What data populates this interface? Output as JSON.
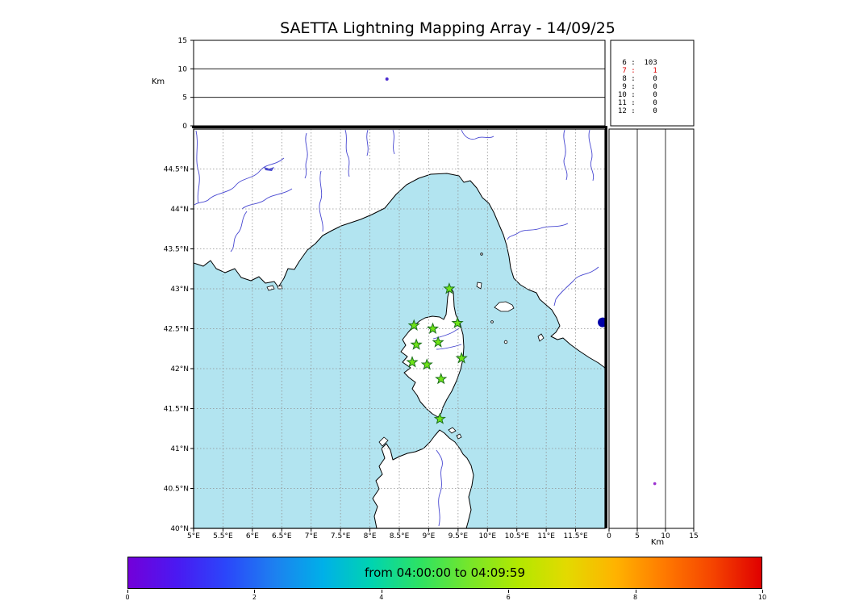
{
  "title": "SAETTA Lightning Mapping Array - 14/09/25",
  "top_panel": {
    "ylabel": "Km",
    "ticks": [
      "15",
      "10",
      "5",
      "0"
    ]
  },
  "right_panel": {
    "xlabel": "Km",
    "ticks": [
      "0",
      "5",
      "10",
      "15"
    ]
  },
  "station_counts": {
    "rows": [
      {
        "id": "6",
        "count": "103",
        "color": "#000000"
      },
      {
        "id": "7",
        "count": "1",
        "color": "#dd0000"
      },
      {
        "id": "8",
        "count": "0",
        "color": "#000000"
      },
      {
        "id": "9",
        "count": "0",
        "color": "#000000"
      },
      {
        "id": "10",
        "count": "0",
        "color": "#000000"
      },
      {
        "id": "11",
        "count": "0",
        "color": "#000000"
      },
      {
        "id": "12",
        "count": "0",
        "color": "#000000"
      }
    ]
  },
  "map": {
    "lat_ticks": [
      "44.5°N",
      "44°N",
      "43.5°N",
      "43°N",
      "42.5°N",
      "42°N",
      "41.5°N",
      "41°N",
      "40.5°N",
      "40°N"
    ],
    "lon_ticks": [
      "5°E",
      "5.5°E",
      "6°E",
      "6.5°E",
      "7°E",
      "7.5°E",
      "8°E",
      "8.5°E",
      "9°E",
      "9.5°E",
      "10°E",
      "10.5°E",
      "11°E",
      "11.5°E"
    ],
    "sea_color": "#b2e4f0",
    "land_color": "#ffffff",
    "river_color": "#4747d1",
    "grid_color": "#909090",
    "station_color": "#6fe318",
    "station_edge": "#1c701c"
  },
  "colorbar": {
    "label": "from 04:00:00 to 04:09:59",
    "ticks": [
      "0",
      "2",
      "4",
      "6",
      "8",
      "10"
    ],
    "gradient": [
      "#7300d9",
      "#4a19f2",
      "#2b46fa",
      "#1d80f0",
      "#00b0e8",
      "#00d4b0",
      "#2ee262",
      "#76e62a",
      "#b2e800",
      "#e3da00",
      "#ffb300",
      "#ff7a00",
      "#f54400",
      "#e00000"
    ]
  },
  "chart_data": {
    "type": "scatter",
    "title": "SAETTA Lightning Mapping Array - 14/09/25",
    "panels": {
      "top": {
        "x": "longitude",
        "y": "altitude Km",
        "ylim": [
          0,
          15
        ]
      },
      "main": {
        "x": "longitude",
        "y": "latitude"
      },
      "right": {
        "x": "altitude Km",
        "y": "latitude",
        "xlim": [
          0,
          15
        ]
      }
    },
    "map_extent": {
      "lon": [
        5,
        12
      ],
      "lat": [
        40,
        45
      ]
    },
    "altitude_range_km": [
      0,
      15
    ],
    "time_window": {
      "from": "04:00:00",
      "to": "04:09:59"
    },
    "colorbar_scale_minutes": [
      0,
      10
    ],
    "sources_per_station_count": {
      "6": 103,
      "7": 1,
      "8": 0,
      "9": 0,
      "10": 0,
      "11": 0,
      "12": 0
    },
    "stations": [
      {
        "lon": 9.35,
        "lat": 43.0
      },
      {
        "lon": 8.75,
        "lat": 42.54
      },
      {
        "lon": 9.07,
        "lat": 42.5
      },
      {
        "lon": 9.49,
        "lat": 42.57
      },
      {
        "lon": 8.79,
        "lat": 42.3
      },
      {
        "lon": 9.16,
        "lat": 42.33
      },
      {
        "lon": 9.56,
        "lat": 42.13
      },
      {
        "lon": 8.72,
        "lat": 42.08
      },
      {
        "lon": 8.97,
        "lat": 42.05
      },
      {
        "lon": 9.21,
        "lat": 41.87
      },
      {
        "lon": 9.19,
        "lat": 41.37
      }
    ],
    "points": {
      "map": [
        {
          "lon": 11.96,
          "lat": 42.58,
          "r": 6,
          "color": "#0000a8"
        }
      ],
      "alt_lon": [
        {
          "lon": 8.29,
          "alt_km": 8.2,
          "r": 2,
          "color": "#4b2bd0"
        }
      ],
      "alt_lat": [
        {
          "lat": 40.56,
          "alt_km": 8.1,
          "r": 1.8,
          "color": "#9b30d0"
        }
      ]
    }
  }
}
